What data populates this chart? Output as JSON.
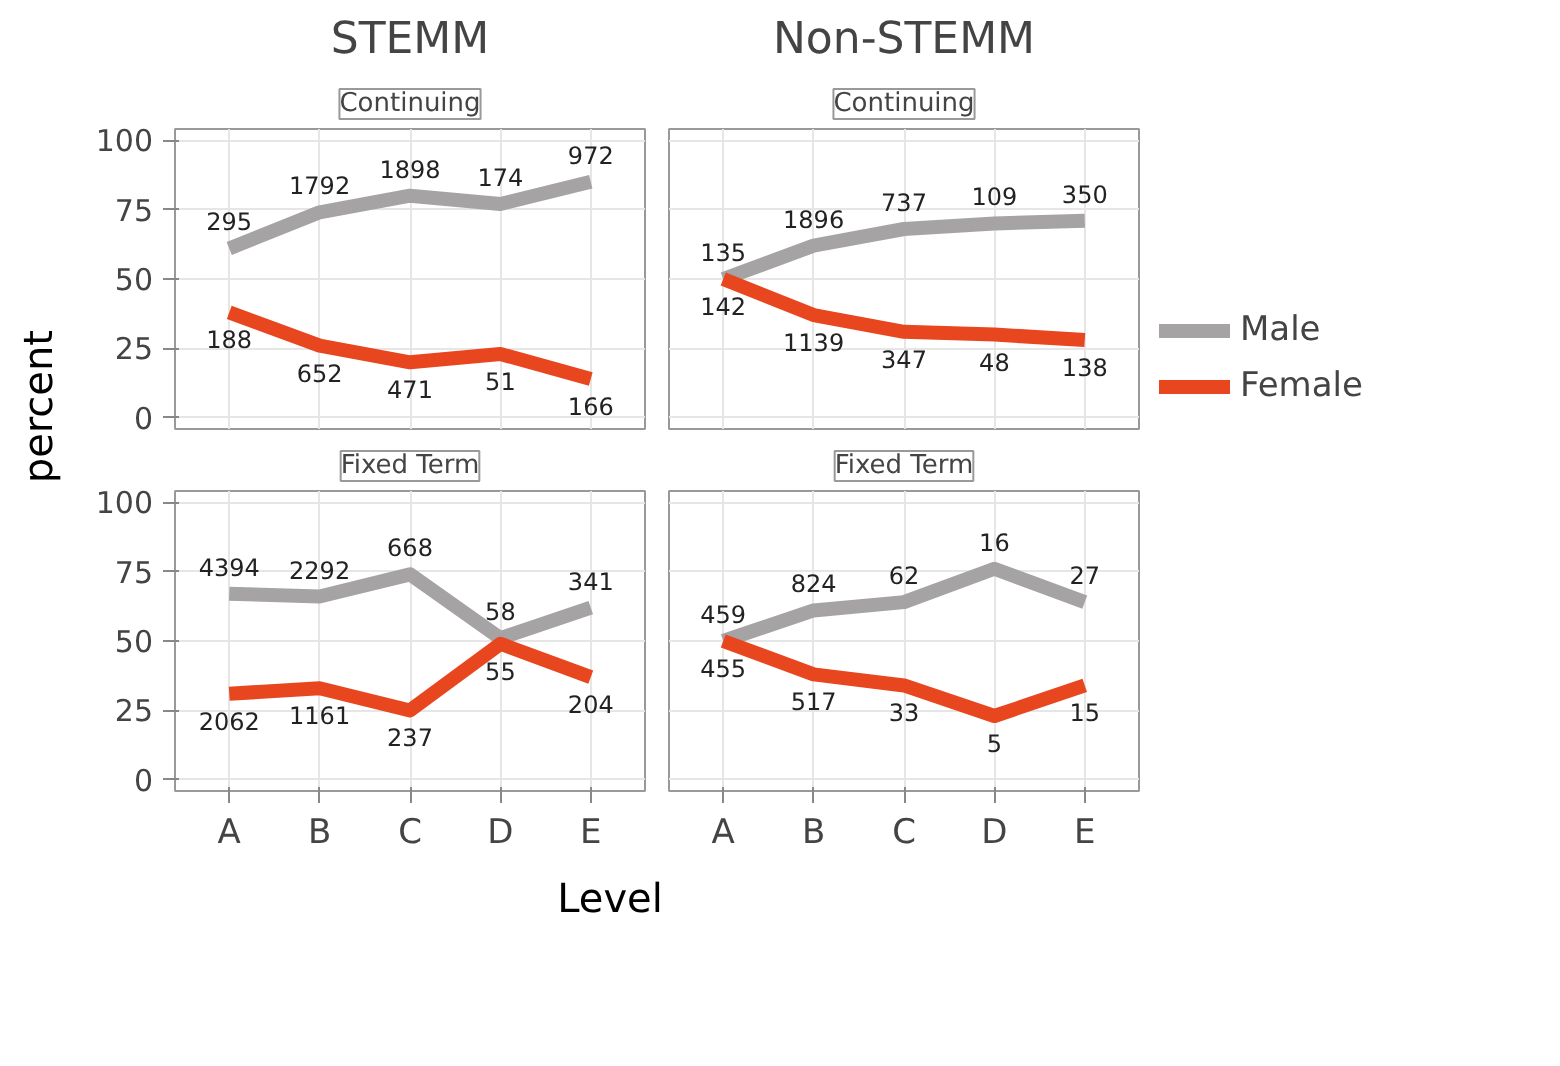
{
  "chart_data": [
    {
      "type": "line",
      "title": "STEMM",
      "subtitle": "Continuing",
      "ylabel": "percent",
      "categories": [
        "A",
        "B",
        "C",
        "D",
        "E"
      ],
      "ylim": [
        -4,
        104
      ],
      "yticks": [
        0,
        25,
        50,
        75,
        100
      ],
      "grid": true,
      "tick_labels": "y",
      "marker": "none",
      "series": [
        {
          "color": "#a6a3a4",
          "values": [
            61,
            74,
            80,
            77,
            85
          ]
        },
        {
          "color": "#e8461e",
          "values": [
            38,
            26,
            20,
            23,
            14
          ]
        }
      ],
      "annotations": [
        {
          "text": "295",
          "x": "A",
          "y": 61
        },
        {
          "text": "1792",
          "x": "B",
          "y": 74
        },
        {
          "text": "1898",
          "x": "C",
          "y": 80
        },
        {
          "text": "174",
          "x": "D",
          "y": 77
        },
        {
          "text": "972",
          "x": "E",
          "y": 85
        },
        {
          "text": "188",
          "x": "A",
          "y": 38
        },
        {
          "text": "652",
          "x": "B",
          "y": 26
        },
        {
          "text": "471",
          "x": "C",
          "y": 20
        },
        {
          "text": "51",
          "x": "D",
          "y": 23
        },
        {
          "text": "166",
          "x": "E",
          "y": 14
        }
      ]
    },
    {
      "type": "line",
      "title": "Non-STEMM",
      "subtitle": "Continuing",
      "categories": [
        "A",
        "B",
        "C",
        "D",
        "E"
      ],
      "ylim": [
        -4,
        104
      ],
      "yticks": [
        0,
        25,
        50,
        75,
        100
      ],
      "grid": true,
      "tick_labels": false,
      "legend": "right",
      "marker": "none",
      "series": [
        {
          "name": "Male",
          "color": "#a6a3a4",
          "values": [
            50,
            62,
            68,
            70,
            71
          ]
        },
        {
          "name": "Female",
          "color": "#e8461e",
          "values": [
            50,
            37,
            31,
            30,
            28
          ]
        }
      ],
      "annotations": [
        {
          "text": "135",
          "x": "A",
          "y": 50
        },
        {
          "text": "1896",
          "x": "B",
          "y": 62
        },
        {
          "text": "737",
          "x": "C",
          "y": 68
        },
        {
          "text": "109",
          "x": "D",
          "y": 70
        },
        {
          "text": "350",
          "x": "E",
          "y": 71
        },
        {
          "text": "142",
          "x": "A",
          "y": 50
        },
        {
          "text": "1139",
          "x": "B",
          "y": 37
        },
        {
          "text": "347",
          "x": "C",
          "y": 31
        },
        {
          "text": "48",
          "x": "D",
          "y": 30
        },
        {
          "text": "138",
          "x": "E",
          "y": 28
        }
      ]
    },
    {
      "type": "line",
      "subtitle": "Fixed Term",
      "xlabel": "Level",
      "categories": [
        "A",
        "B",
        "C",
        "D",
        "E"
      ],
      "ylim": [
        -4,
        104
      ],
      "yticks": [
        0,
        25,
        50,
        75,
        100
      ],
      "grid": true,
      "marker": "none",
      "series": [
        {
          "color": "#a6a3a4",
          "values": [
            67,
            66,
            74,
            51,
            62
          ]
        },
        {
          "color": "#e8461e",
          "values": [
            31,
            33,
            25,
            49,
            37
          ]
        }
      ],
      "annotations": [
        {
          "text": "4394",
          "x": "A",
          "y": 67
        },
        {
          "text": "2292",
          "x": "B",
          "y": 66
        },
        {
          "text": "668",
          "x": "C",
          "y": 74
        },
        {
          "text": "58",
          "x": "D",
          "y": 51
        },
        {
          "text": "341",
          "x": "E",
          "y": 62
        },
        {
          "text": "2062",
          "x": "A",
          "y": 31
        },
        {
          "text": "1161",
          "x": "B",
          "y": 33
        },
        {
          "text": "237",
          "x": "C",
          "y": 25
        },
        {
          "text": "55",
          "x": "D",
          "y": 49
        },
        {
          "text": "204",
          "x": "E",
          "y": 37
        }
      ]
    },
    {
      "type": "line",
      "subtitle": "Fixed Term",
      "categories": [
        "A",
        "B",
        "C",
        "D",
        "E"
      ],
      "ylim": [
        -4,
        104
      ],
      "yticks": [
        0,
        25,
        50,
        75,
        100
      ],
      "grid": true,
      "tick_labels": "x",
      "marker": "none",
      "series": [
        {
          "color": "#a6a3a4",
          "values": [
            50,
            61,
            64,
            76,
            64
          ]
        },
        {
          "color": "#e8461e",
          "values": [
            50,
            38,
            34,
            23,
            34
          ]
        }
      ],
      "annotations": [
        {
          "text": "459",
          "x": "A",
          "y": 50
        },
        {
          "text": "824",
          "x": "B",
          "y": 61
        },
        {
          "text": "62",
          "x": "C",
          "y": 64
        },
        {
          "text": "16",
          "x": "D",
          "y": 76
        },
        {
          "text": "27",
          "x": "E",
          "y": 64
        },
        {
          "text": "455",
          "x": "A",
          "y": 50
        },
        {
          "text": "517",
          "x": "B",
          "y": 38
        },
        {
          "text": "33",
          "x": "C",
          "y": 34
        },
        {
          "text": "5",
          "x": "D",
          "y": 23
        },
        {
          "text": "15",
          "x": "E",
          "y": 34
        }
      ]
    }
  ]
}
